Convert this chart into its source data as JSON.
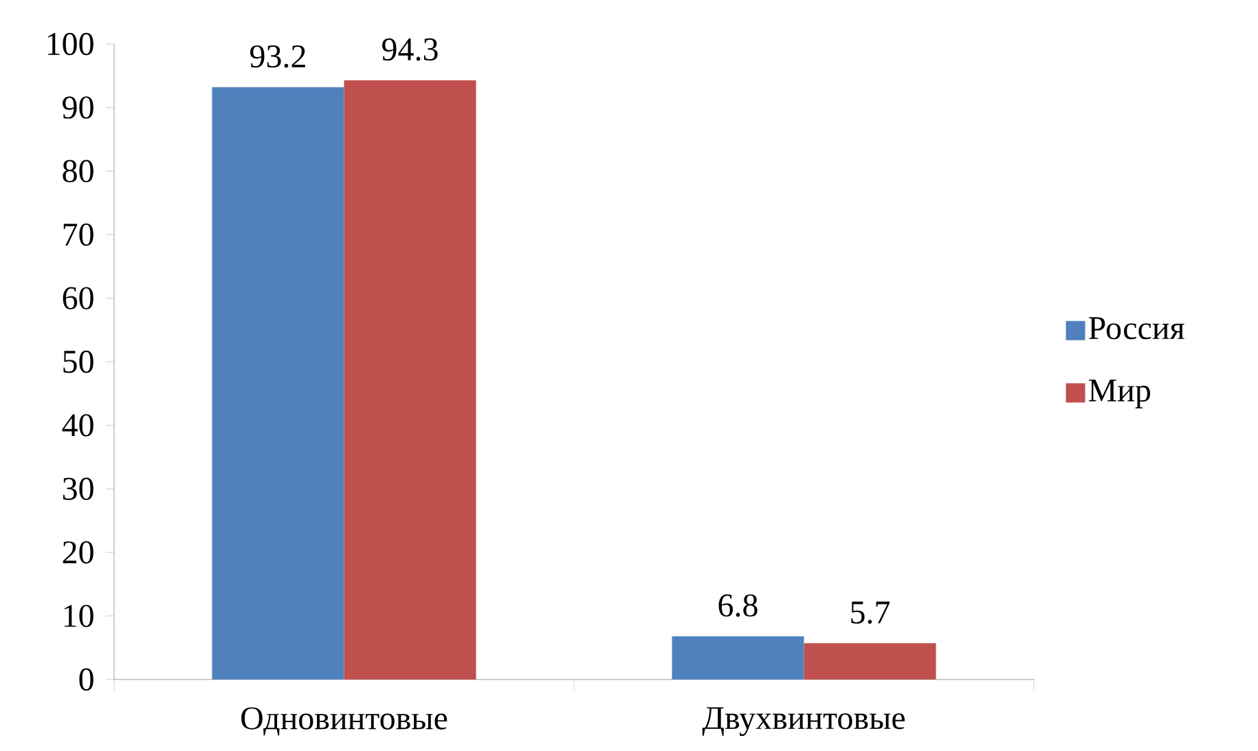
{
  "chart_data": {
    "type": "bar",
    "categories": [
      "Одновинтовые",
      "Двухвинтовые"
    ],
    "series": [
      {
        "name": "Россия",
        "color": "#4f81bd",
        "values": [
          93.2,
          6.8
        ]
      },
      {
        "name": "Мир",
        "color": "#c0504d",
        "values": [
          94.3,
          5.7
        ]
      }
    ],
    "ylim": [
      0,
      100
    ],
    "yticks": [
      0,
      10,
      20,
      30,
      40,
      50,
      60,
      70,
      80,
      90,
      100
    ],
    "data_labels": true,
    "legend": "right",
    "grid": false
  }
}
